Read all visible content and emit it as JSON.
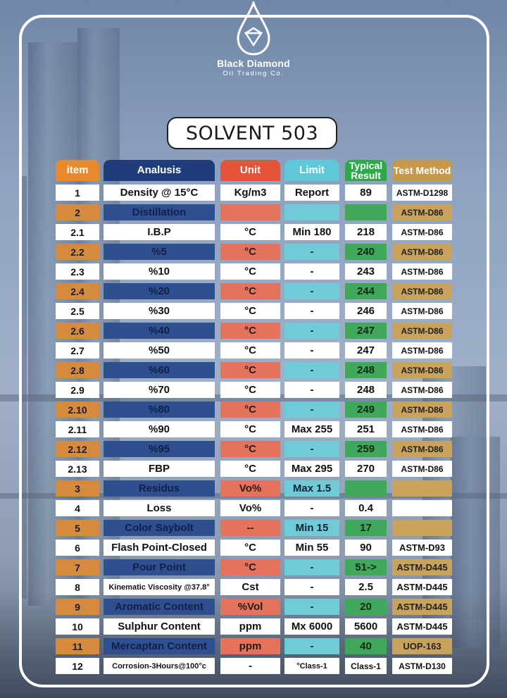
{
  "brand": {
    "name": "Black Diamond",
    "subtitle": "Oil Trading Co."
  },
  "title": "SOLVENT 503",
  "headers": {
    "item": "item",
    "analysis": "Analusis",
    "unit": "Unit",
    "limit": "Limit",
    "result": "Typical Result",
    "method": "Test Method"
  },
  "colors": {
    "item": "#e88a2e",
    "analysis": "#1f3d7a",
    "unit": "#e4533a",
    "limit": "#5ec8d8",
    "result": "#2ea84a",
    "method": "#c79a4a"
  },
  "rows": [
    {
      "item": "1",
      "analysis": "Density @ 15°C",
      "unit": "Kg/m3",
      "limit": "Report",
      "result": "89",
      "method": "ASTM-D1298"
    },
    {
      "item": "2",
      "analysis": "Distillation",
      "unit": "",
      "limit": "",
      "result": "",
      "method": "ASTM-D86"
    },
    {
      "item": "2.1",
      "analysis": "I.B.P",
      "unit": "°C",
      "limit": "Min 180",
      "result": "218",
      "method": "ASTM-D86"
    },
    {
      "item": "2.2",
      "analysis": "%5",
      "unit": "°C",
      "limit": "-",
      "result": "240",
      "method": "ASTM-D86"
    },
    {
      "item": "2.3",
      "analysis": "%10",
      "unit": "°C",
      "limit": "-",
      "result": "243",
      "method": "ASTM-D86"
    },
    {
      "item": "2.4",
      "analysis": "%20",
      "unit": "°C",
      "limit": "-",
      "result": "244",
      "method": "ASTM-D86"
    },
    {
      "item": "2.5",
      "analysis": "%30",
      "unit": "°C",
      "limit": "-",
      "result": "246",
      "method": "ASTM-D86"
    },
    {
      "item": "2.6",
      "analysis": "%40",
      "unit": "°C",
      "limit": "-",
      "result": "247",
      "method": "ASTM-D86"
    },
    {
      "item": "2.7",
      "analysis": "%50",
      "unit": "°C",
      "limit": "-",
      "result": "247",
      "method": "ASTM-D86"
    },
    {
      "item": "2.8",
      "analysis": "%60",
      "unit": "°C",
      "limit": "-",
      "result": "248",
      "method": "ASTM-D86"
    },
    {
      "item": "2.9",
      "analysis": "%70",
      "unit": "°C",
      "limit": "-",
      "result": "248",
      "method": "ASTM-D86"
    },
    {
      "item": "2.10",
      "analysis": "%80",
      "unit": "°C",
      "limit": "-",
      "result": "249",
      "method": "ASTM-D86"
    },
    {
      "item": "2.11",
      "analysis": "%90",
      "unit": "°C",
      "limit": "Max 255",
      "result": "251",
      "method": "ASTM-D86"
    },
    {
      "item": "2.12",
      "analysis": "%95",
      "unit": "°C",
      "limit": "-",
      "result": "259",
      "method": "ASTM-D86"
    },
    {
      "item": "2.13",
      "analysis": "FBP",
      "unit": "°C",
      "limit": "Max 295",
      "result": "270",
      "method": "ASTM-D86"
    },
    {
      "item": "3",
      "analysis": "Residus",
      "unit": "Vo%",
      "limit": "Max 1.5",
      "result": "",
      "method": ""
    },
    {
      "item": "4",
      "analysis": "Loss",
      "unit": "Vo%",
      "limit": "-",
      "result": "0.4",
      "method": ""
    },
    {
      "item": "5",
      "analysis": "Color Saybolt",
      "unit": "--",
      "limit": "Min 15",
      "result": "17",
      "method": ""
    },
    {
      "item": "6",
      "analysis": "Flash Point-Closed",
      "unit": "°C",
      "limit": "Min 55",
      "result": "90",
      "method": "ASTM-D93"
    },
    {
      "item": "7",
      "analysis": "Pour Point",
      "unit": "°C",
      "limit": "-",
      "result": "51->",
      "method": "ASTM-D445"
    },
    {
      "item": "8",
      "analysis": "Kinematic Viscosity @37.8°",
      "unit": "Cst",
      "limit": "-",
      "result": "2.5",
      "method": "ASTM-D445"
    },
    {
      "item": "9",
      "analysis": "Aromatic Content",
      "unit": "%Vol",
      "limit": "-",
      "result": "20",
      "method": "ASTM-D445"
    },
    {
      "item": "10",
      "analysis": "Sulphur Content",
      "unit": "ppm",
      "limit": "Mx 6000",
      "result": "5600",
      "method": "ASTM-D445"
    },
    {
      "item": "11",
      "analysis": "Mercaptan Content",
      "unit": "ppm",
      "limit": "-",
      "result": "40",
      "method": "UOP-163"
    },
    {
      "item": "12",
      "analysis": "Corrosion-3Hours@100°c",
      "unit": "-",
      "limit": "°Class-1",
      "result": "Class-1",
      "method": "ASTM-D130"
    }
  ]
}
